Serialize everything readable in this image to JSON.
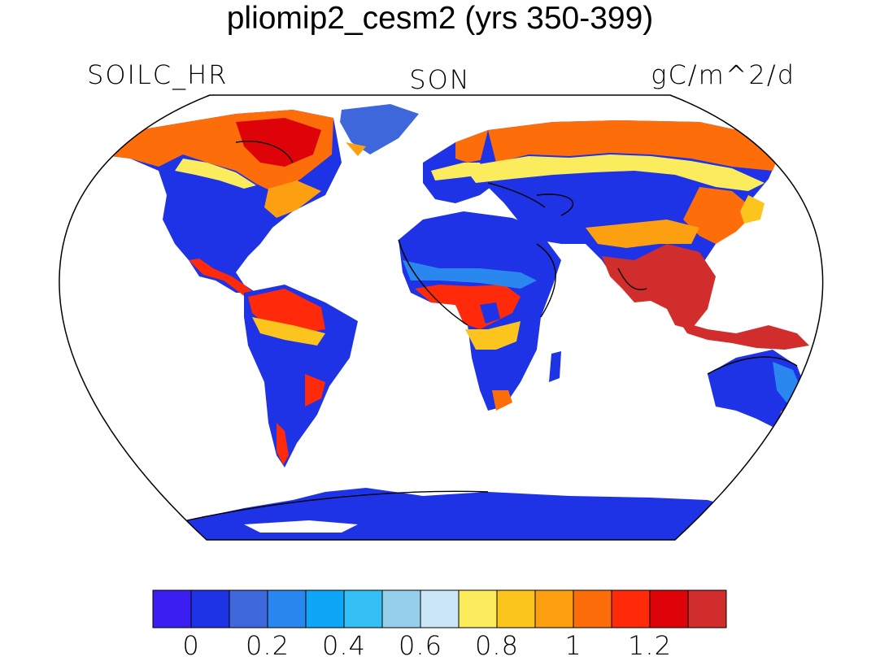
{
  "title": "pliomip2_cesm2 (yrs 350-399)",
  "left_label": "SOILC_HR",
  "center_label": "SON",
  "right_label": "gC/m^2/d",
  "map": {
    "projection": "Robinson",
    "coastlines": true,
    "ocean_color": "#ffffff"
  },
  "colorbar": {
    "colors": [
      "#3b1ff0",
      "#1e32e6",
      "#3f67dc",
      "#2b87f0",
      "#10a6f8",
      "#33bff3",
      "#96cfec",
      "#cbe6f6",
      "#fbec5d",
      "#fcc51d",
      "#fca012",
      "#fd6e0b",
      "#fe2a0a",
      "#dd0309",
      "#d12d2d"
    ],
    "tick_labels": [
      "0",
      "0.2",
      "0.4",
      "0.6",
      "0.8",
      "1",
      "1.2"
    ],
    "tick_values": [
      0,
      0.2,
      0.4,
      0.6,
      0.8,
      1.0,
      1.2
    ]
  }
}
